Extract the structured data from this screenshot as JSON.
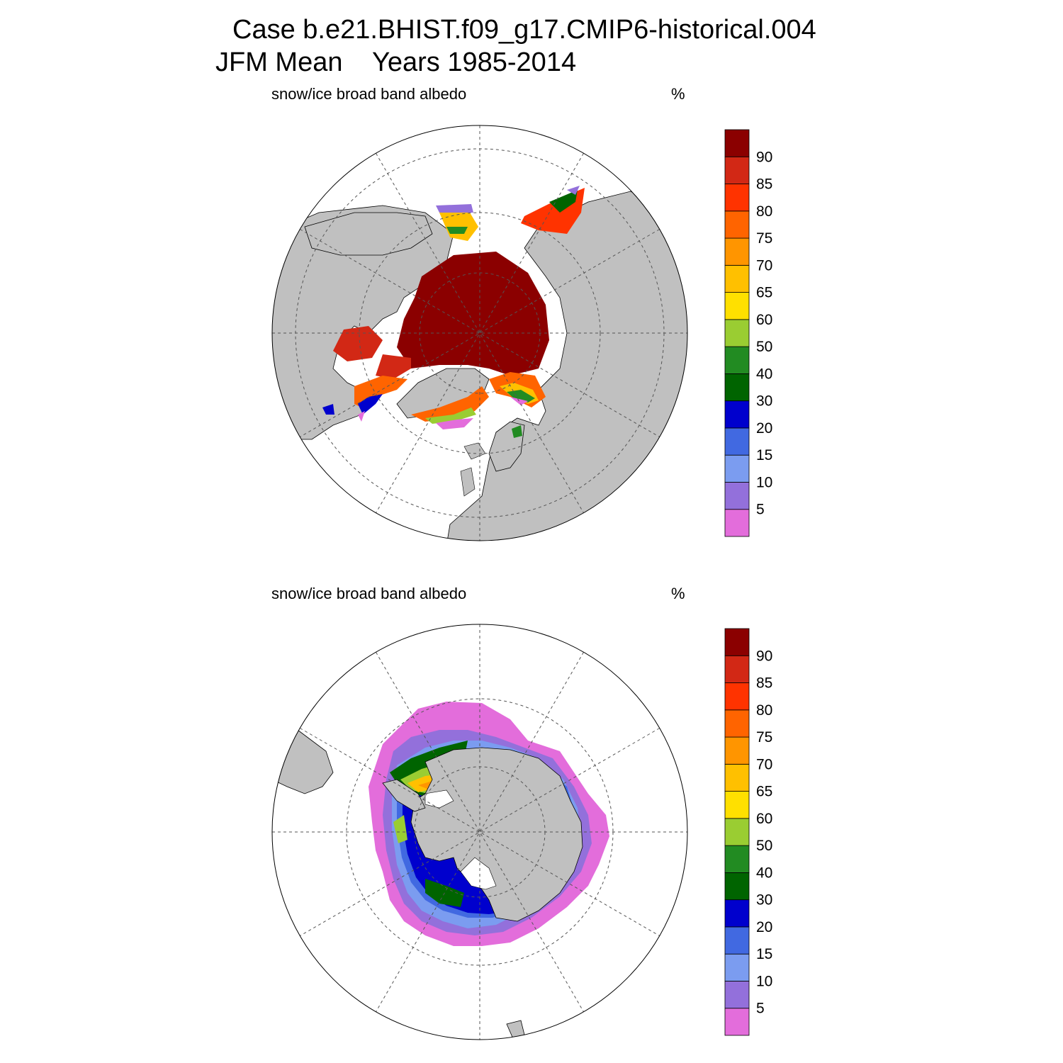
{
  "title": {
    "line1": "Case b.e21.BHIST.f09_g17.CMIP6-historical.004",
    "line2": "JFM Mean    Years 1985-2014"
  },
  "panels": [
    {
      "name": "north",
      "variable": "snow/ice broad band albedo",
      "units": "%"
    },
    {
      "name": "south",
      "variable": "snow/ice broad band albedo",
      "units": "%"
    }
  ],
  "colorbar": {
    "levels": [
      "5",
      "10",
      "15",
      "20",
      "30",
      "40",
      "50",
      "60",
      "65",
      "70",
      "75",
      "80",
      "85",
      "90"
    ],
    "colors": [
      "#e36ddb",
      "#9370db",
      "#7b9cf0",
      "#4169e1",
      "#0000cd",
      "#006400",
      "#228b22",
      "#9acd32",
      "#ffe000",
      "#ffc000",
      "#ff9500",
      "#ff6400",
      "#ff3300",
      "#d22815",
      "#8b0000"
    ]
  },
  "map_colors": {
    "land": "#c0c0c0",
    "ocean": "#ffffff",
    "grid": "#555555"
  }
}
